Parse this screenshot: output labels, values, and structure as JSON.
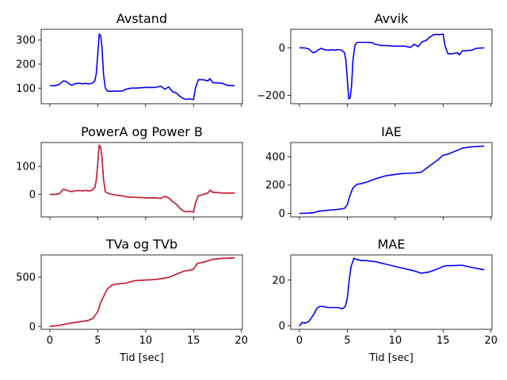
{
  "chart_data": [
    {
      "type": "line",
      "title": "Avstand",
      "xlabel": "",
      "xlim": [
        -0.9,
        20.1
      ],
      "ylim": [
        35,
        345
      ],
      "xticks": [
        0,
        5,
        10,
        15,
        20
      ],
      "xticklabels_visible": false,
      "yticks": [
        100,
        200,
        300
      ],
      "yticklabels": [
        "100",
        "200",
        "300"
      ],
      "series": [
        {
          "color": "#0000ff",
          "x": [
            0,
            0.5,
            1,
            1.4,
            1.7,
            2,
            2.3,
            2.6,
            3,
            3.5,
            3.8,
            4,
            4.4,
            4.7,
            4.85,
            5.0,
            5.15,
            5.3,
            5.45,
            5.6,
            5.8,
            6.0,
            6.2,
            6.5,
            7,
            7.6,
            7.9,
            8.5,
            9,
            10,
            11,
            11.6,
            12,
            12.4,
            12.8,
            13.2,
            13.6,
            14,
            14.3,
            14.6,
            15,
            15.2,
            15.5,
            16,
            16.5,
            16.7,
            17,
            18,
            18.5,
            19.3
          ],
          "y": [
            110,
            110,
            115,
            130,
            128,
            118,
            112,
            118,
            120,
            118,
            120,
            117,
            120,
            130,
            160,
            240,
            325,
            320,
            270,
            160,
            100,
            88,
            87,
            87,
            87,
            88,
            95,
            100,
            100,
            103,
            103,
            108,
            95,
            105,
            85,
            80,
            65,
            55,
            53,
            55,
            52,
            100,
            135,
            135,
            130,
            140,
            123,
            120,
            112,
            110
          ]
        }
      ]
    },
    {
      "type": "line",
      "title": "Avvik",
      "xlabel": "",
      "xlim": [
        -0.9,
        20.1
      ],
      "ylim": [
        -235,
        78
      ],
      "xticks": [
        0,
        5,
        10,
        15,
        20
      ],
      "xticklabels_visible": false,
      "yticks": [
        -200,
        0
      ],
      "yticklabels": [
        "−200",
        "0"
      ],
      "series": [
        {
          "color": "#0000ff",
          "x": [
            0,
            0.5,
            1,
            1.4,
            1.7,
            2,
            2.3,
            2.6,
            3,
            3.5,
            3.8,
            4,
            4.4,
            4.7,
            4.85,
            5.0,
            5.15,
            5.3,
            5.45,
            5.6,
            5.8,
            6.0,
            6.2,
            6.5,
            7,
            7.6,
            7.9,
            8.5,
            9,
            10,
            11,
            11.6,
            12,
            12.4,
            12.8,
            13.2,
            13.6,
            14,
            14.3,
            14.6,
            15,
            15.2,
            15.5,
            16,
            16.5,
            16.7,
            17,
            18,
            18.5,
            19.3
          ],
          "y": [
            0,
            0,
            -5,
            -20,
            -18,
            -8,
            -2,
            -8,
            -10,
            -8,
            -10,
            -7,
            -10,
            -20,
            -50,
            -130,
            -215,
            -210,
            -160,
            -50,
            10,
            22,
            23,
            23,
            23,
            22,
            15,
            10,
            10,
            7,
            7,
            2,
            15,
            5,
            25,
            30,
            45,
            55,
            57,
            55,
            58,
            10,
            -25,
            -25,
            -20,
            -30,
            -13,
            -10,
            -2,
            0
          ]
        }
      ]
    },
    {
      "type": "line",
      "title": "PowerA og Power B",
      "xlabel": "",
      "xlim": [
        -0.9,
        20.1
      ],
      "ylim": [
        -80,
        185
      ],
      "xticks": [
        0,
        5,
        10,
        15,
        20
      ],
      "xticklabels_visible": false,
      "yticks": [
        0,
        100
      ],
      "yticklabels": [
        "0",
        "100"
      ],
      "series": [
        {
          "color": "#0000ff",
          "x": [
            0,
            0.5,
            1,
            1.4,
            1.7,
            2,
            2.3,
            2.6,
            3,
            3.5,
            3.8,
            4,
            4.4,
            4.7,
            4.85,
            5.0,
            5.15,
            5.3,
            5.45,
            5.6,
            5.8,
            6.0,
            6.2,
            6.5,
            7,
            7.6,
            7.9,
            8.5,
            9,
            10,
            11,
            11.6,
            12,
            12.4,
            12.8,
            13.2,
            13.6,
            14,
            14.3,
            14.6,
            15,
            15.2,
            15.5,
            16,
            16.5,
            16.7,
            17,
            18,
            18.5,
            19.3
          ],
          "y": [
            0,
            0,
            3,
            18,
            16,
            12,
            10,
            13,
            14,
            13,
            15,
            12,
            15,
            25,
            50,
            110,
            175,
            170,
            130,
            55,
            10,
            5,
            3,
            0,
            -3,
            -5,
            -8,
            -10,
            -10,
            -12,
            -12,
            -14,
            -7,
            -12,
            -25,
            -35,
            -50,
            -60,
            -62,
            -60,
            -63,
            -30,
            -5,
            0,
            5,
            15,
            8,
            5,
            5,
            5
          ]
        },
        {
          "color": "#d62728",
          "x": [
            0,
            0.5,
            1,
            1.4,
            1.7,
            2,
            2.3,
            2.6,
            3,
            3.5,
            3.8,
            4,
            4.4,
            4.7,
            4.85,
            5.0,
            5.15,
            5.3,
            5.45,
            5.6,
            5.8,
            6.0,
            6.2,
            6.5,
            7,
            7.6,
            7.9,
            8.5,
            9,
            10,
            11,
            11.6,
            12,
            12.4,
            12.8,
            13.2,
            13.6,
            14,
            14.3,
            14.6,
            15,
            15.2,
            15.5,
            16,
            16.5,
            16.7,
            17,
            18,
            18.5,
            19.3
          ],
          "y": [
            0,
            0,
            3,
            18,
            16,
            12,
            10,
            13,
            14,
            13,
            15,
            12,
            15,
            25,
            50,
            110,
            175,
            170,
            130,
            55,
            10,
            5,
            3,
            0,
            -3,
            -5,
            -8,
            -10,
            -10,
            -12,
            -12,
            -14,
            -7,
            -12,
            -25,
            -35,
            -50,
            -60,
            -62,
            -60,
            -63,
            -30,
            -5,
            0,
            5,
            15,
            8,
            5,
            5,
            5
          ]
        }
      ]
    },
    {
      "type": "line",
      "title": "IAE",
      "xlabel": "",
      "xlim": [
        -0.9,
        20.1
      ],
      "ylim": [
        -25,
        500
      ],
      "xticks": [
        0,
        5,
        10,
        15,
        20
      ],
      "xticklabels_visible": false,
      "yticks": [
        0,
        200,
        400
      ],
      "yticklabels": [
        "0",
        "200",
        "400"
      ],
      "series": [
        {
          "color": "#0000ff",
          "x": [
            0,
            1,
            1.5,
            2,
            3,
            4,
            4.7,
            5.0,
            5.3,
            5.6,
            6,
            6.5,
            7,
            8,
            9,
            10,
            11,
            12,
            12.7,
            13.5,
            14.5,
            15,
            15.5,
            16.5,
            17,
            18,
            19.3
          ],
          "y": [
            0,
            2,
            5,
            15,
            22,
            28,
            35,
            60,
            130,
            180,
            205,
            210,
            220,
            245,
            265,
            275,
            282,
            285,
            290,
            330,
            380,
            410,
            418,
            445,
            460,
            470,
            475
          ]
        }
      ]
    },
    {
      "type": "line",
      "title": "TVa og TVb",
      "xlabel": "Tid [sec]",
      "xlim": [
        -0.9,
        20.1
      ],
      "ylim": [
        -30,
        725
      ],
      "xticks": [
        0,
        5,
        10,
        15,
        20
      ],
      "xticklabels": [
        "0",
        "5",
        "10",
        "15",
        "20"
      ],
      "yticks": [
        0,
        500
      ],
      "yticklabels": [
        "0",
        "500"
      ],
      "series": [
        {
          "color": "#0000ff",
          "x": [
            0,
            1,
            1.5,
            2,
            3,
            4,
            4.5,
            5.0,
            5.3,
            5.6,
            6,
            6.5,
            7,
            8,
            8.5,
            9,
            10,
            11,
            12,
            12.5,
            13,
            14,
            14.6,
            15,
            15.4,
            16,
            16.5,
            17,
            18,
            19.3
          ],
          "y": [
            0,
            10,
            20,
            30,
            45,
            60,
            80,
            150,
            240,
            300,
            380,
            420,
            430,
            440,
            455,
            465,
            470,
            475,
            490,
            500,
            520,
            560,
            570,
            580,
            640,
            650,
            665,
            680,
            690,
            695
          ]
        },
        {
          "color": "#d62728",
          "x": [
            0,
            1,
            1.5,
            2,
            3,
            4,
            4.5,
            5.0,
            5.3,
            5.6,
            6,
            6.5,
            7,
            8,
            8.5,
            9,
            10,
            11,
            12,
            12.5,
            13,
            14,
            14.6,
            15,
            15.4,
            16,
            16.5,
            17,
            18,
            19.3
          ],
          "y": [
            0,
            10,
            20,
            30,
            45,
            60,
            80,
            150,
            240,
            300,
            380,
            420,
            430,
            440,
            455,
            465,
            470,
            475,
            490,
            500,
            520,
            560,
            570,
            580,
            640,
            650,
            665,
            680,
            690,
            695
          ]
        }
      ]
    },
    {
      "type": "line",
      "title": "MAE",
      "xlabel": "Tid [sec]",
      "xlim": [
        -0.9,
        20.1
      ],
      "ylim": [
        -1.5,
        31
      ],
      "xticks": [
        0,
        5,
        10,
        15,
        20
      ],
      "xticklabels": [
        "0",
        "5",
        "10",
        "15",
        "20"
      ],
      "yticks": [
        0,
        20
      ],
      "yticklabels": [
        "0",
        "20"
      ],
      "series": [
        {
          "color": "#0000ff",
          "x": [
            0,
            0.3,
            0.6,
            1,
            1.5,
            1.8,
            2.1,
            2.5,
            3,
            3.5,
            4,
            4.5,
            4.8,
            5.0,
            5.2,
            5.4,
            5.7,
            6.0,
            6.5,
            7,
            8,
            9,
            10,
            11,
            12,
            12.7,
            13.5,
            14.5,
            15,
            15.5,
            16,
            17,
            18,
            19.3
          ],
          "y": [
            0,
            1.5,
            1.2,
            2,
            5,
            7.5,
            8.5,
            8.5,
            8,
            8,
            8,
            7.5,
            8.5,
            12,
            20,
            26,
            29.5,
            29,
            28.5,
            28.5,
            28,
            27,
            26,
            25,
            24,
            23,
            23.5,
            25,
            26,
            26.3,
            26.3,
            26.5,
            25.5,
            24.5
          ]
        }
      ]
    }
  ]
}
